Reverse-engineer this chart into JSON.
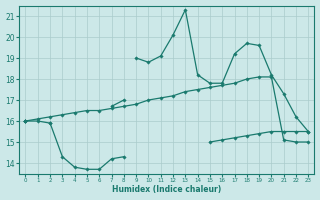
{
  "xlabel": "Humidex (Indice chaleur)",
  "x_values": [
    0,
    1,
    2,
    3,
    4,
    5,
    6,
    7,
    8,
    9,
    10,
    11,
    12,
    13,
    14,
    15,
    16,
    17,
    18,
    19,
    20,
    21,
    22,
    23
  ],
  "line_top": [
    16.0,
    null,
    null,
    null,
    null,
    null,
    null,
    null,
    null,
    19.0,
    18.8,
    19.1,
    20.1,
    21.3,
    18.2,
    17.8,
    17.8,
    19.2,
    19.7,
    19.6,
    18.2,
    17.3,
    16.2,
    15.5
  ],
  "line_mid_upper": [
    16.0,
    null,
    15.9,
    null,
    null,
    null,
    null,
    16.7,
    17.0,
    null,
    null,
    null,
    null,
    null,
    null,
    null,
    null,
    null,
    null,
    null,
    null,
    null,
    null,
    null
  ],
  "line_mid": [
    16.0,
    16.1,
    16.2,
    16.3,
    16.4,
    16.5,
    16.5,
    16.6,
    16.7,
    16.8,
    17.0,
    17.1,
    17.2,
    17.4,
    17.5,
    17.6,
    17.7,
    17.8,
    18.0,
    18.1,
    18.1,
    15.1,
    15.0,
    15.0
  ],
  "line_lower": [
    16.0,
    16.0,
    15.9,
    14.3,
    13.8,
    13.7,
    13.7,
    14.2,
    14.3,
    null,
    null,
    null,
    null,
    null,
    null,
    15.0,
    15.1,
    15.2,
    15.3,
    15.4,
    15.5,
    15.5,
    15.5,
    15.5
  ],
  "bg_color": "#cce8e8",
  "line_color": "#1a7a6e",
  "grid_color": "#aacccc",
  "ylim": [
    13.5,
    21.5
  ],
  "xlim": [
    -0.5,
    23.5
  ],
  "yticks": [
    14,
    15,
    16,
    17,
    18,
    19,
    20,
    21
  ],
  "xticks": [
    0,
    1,
    2,
    3,
    4,
    5,
    6,
    7,
    8,
    9,
    10,
    11,
    12,
    13,
    14,
    15,
    16,
    17,
    18,
    19,
    20,
    21,
    22,
    23
  ]
}
